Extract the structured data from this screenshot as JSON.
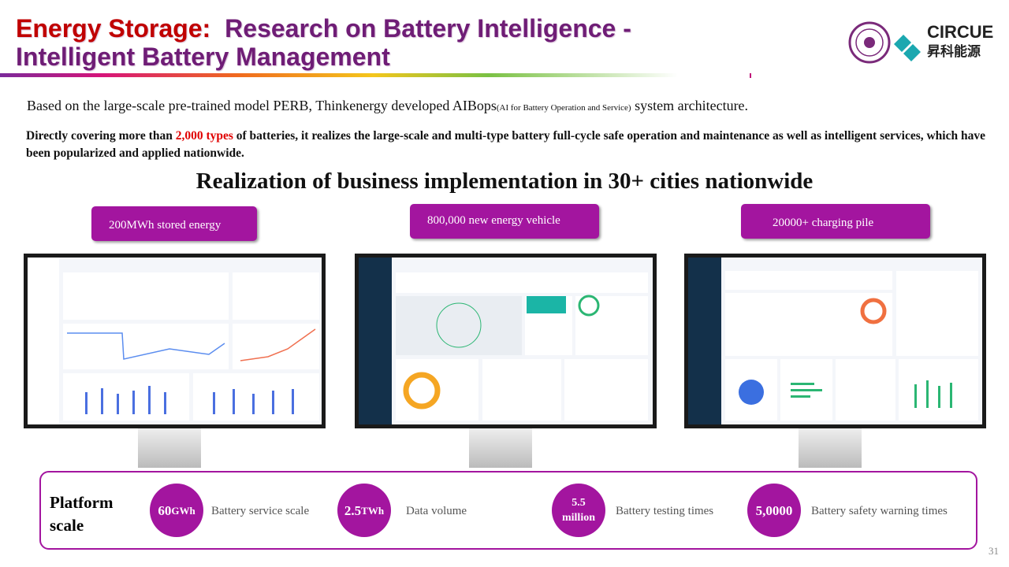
{
  "header": {
    "title_prefix": "Energy Storage:",
    "title_main": "Research on Battery Intelligence -",
    "title_line2": "Intelligent Battery Management",
    "logo_name": "CIRCUE",
    "logo_cn": "昇科能源"
  },
  "intro": {
    "text_before": "Based on the large-scale pre-trained model PERB, Thinkenergy developed AIBops",
    "text_small": "(AI for Battery Operation and Service)",
    "text_after": " system architecture."
  },
  "coverage": {
    "text_before": "Directly covering more than ",
    "highlight": "2,000 types",
    "text_after": " of batteries, it realizes the large-scale and multi-type battery full-cycle safe operation and maintenance as well as intelligent services, which have been popularized and applied nationwide."
  },
  "heading": "Realization of business implementation in 30+ cities nationwide",
  "tags": [
    "200MWh stored energy",
    "800,000 new energy vehicle",
    "20000+ charging pile"
  ],
  "platform": {
    "title": "Platform scale",
    "stats": [
      {
        "value": "60",
        "unit": "GWh",
        "label": "Battery service  scale"
      },
      {
        "value": "2.5",
        "unit": "TWh",
        "label": "Data volume"
      },
      {
        "value": "5.5 million",
        "label": "Battery testing times"
      },
      {
        "value": "5,0000",
        "label": "Battery safety warning times"
      }
    ]
  },
  "page_number": "31"
}
